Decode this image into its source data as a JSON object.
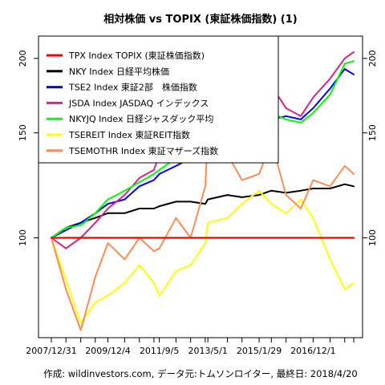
{
  "chart_data": {
    "type": "line",
    "title": "相対株価 vs TOPIX (東証株価指数) (1)",
    "caption": "作成: wildinvestors.com, データ元:トムソンロイター, 最終日: 2018/4/20",
    "xlabel": "",
    "ylabel": "",
    "x_tick_labels": [
      "2007/12/31",
      "2009/12/4",
      "2011/9/5",
      "2013/5/1",
      "2015/1/29",
      "2016/12/1"
    ],
    "x": [
      "2007/12/31",
      "2008/6/30",
      "2008/12/31",
      "2009/6/30",
      "2009/12/4",
      "2010/6/30",
      "2010/12/31",
      "2011/6/30",
      "2011/9/5",
      "2012/3/30",
      "2012/9/28",
      "2013/3/29",
      "2013/5/1",
      "2013/12/30",
      "2014/6/30",
      "2015/1/29",
      "2015/6/30",
      "2015/12/30",
      "2016/6/30",
      "2016/12/1",
      "2017/6/30",
      "2017/12/29",
      "2018/4/20"
    ],
    "y_ticks": [
      100,
      150,
      200
    ],
    "ylim": [
      68,
      218
    ],
    "y_scale": "log",
    "grid": false,
    "legend_placement": "top-left",
    "series": [
      {
        "name": "TPX Index TOPIX (東証株価指数)",
        "color": "#ff0000",
        "values": [
          100,
          100,
          100,
          100,
          100,
          100,
          100,
          100,
          100,
          100,
          100,
          100,
          100,
          100,
          100,
          100,
          100,
          100,
          100,
          100,
          100,
          100,
          100
        ]
      },
      {
        "name": "NKY Index 日経平均株価",
        "color": "#000000",
        "values": [
          100,
          104,
          106,
          108,
          110,
          110,
          112,
          112,
          113,
          115,
          115,
          114,
          116,
          118,
          117,
          118,
          120,
          119,
          120,
          121,
          121,
          123,
          122
        ]
      },
      {
        "name": "TSE2 Index 東証2部　株価指数",
        "color": "#0000ff",
        "values": [
          100,
          103,
          106,
          110,
          114,
          116,
          122,
          125,
          128,
          132,
          136,
          140,
          148,
          150,
          148,
          152,
          158,
          160,
          158,
          165,
          178,
          192,
          188
        ]
      },
      {
        "name": "JSDA Index JASDAQ インデックス",
        "color": "#e0208a",
        "values": [
          100,
          96,
          100,
          106,
          112,
          118,
          126,
          130,
          138,
          160,
          152,
          168,
          185,
          170,
          165,
          172,
          180,
          165,
          160,
          172,
          185,
          200,
          205
        ]
      },
      {
        "name": "NKYJQ Index 日経ジャスダック平均",
        "color": "#00ff00",
        "values": [
          100,
          104,
          105,
          110,
          116,
          120,
          124,
          128,
          130,
          136,
          138,
          145,
          160,
          150,
          145,
          152,
          162,
          158,
          156,
          162,
          174,
          196,
          198
        ]
      },
      {
        "name": "TSEREIT Index 東証REIT指数",
        "color": "#ffff00",
        "values": [
          100,
          85,
          72,
          78,
          80,
          84,
          90,
          84,
          80,
          88,
          90,
          98,
          106,
          108,
          114,
          120,
          114,
          110,
          116,
          108,
          92,
          82,
          84
        ]
      },
      {
        "name": "TSEMOTHR Index 東証マザーズ指数",
        "color": "#ff8c55",
        "values": [
          100,
          82,
          70,
          86,
          98,
          92,
          100,
          95,
          96,
          108,
          100,
          122,
          150,
          138,
          125,
          128,
          145,
          118,
          112,
          125,
          122,
          132,
          128
        ]
      }
    ]
  }
}
